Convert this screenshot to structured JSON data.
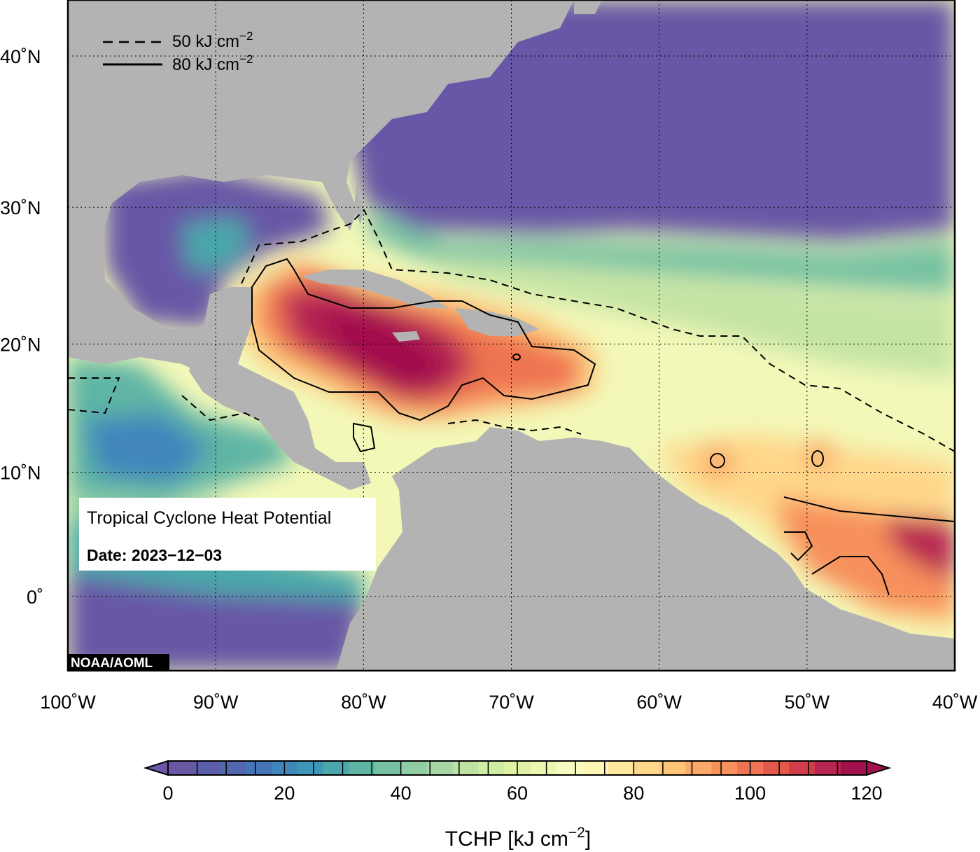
{
  "map": {
    "title": "Tropical Cyclone Heat Potential",
    "date_label": "Date: 2023−12−03",
    "credit": "NOAA/AOML",
    "lon_ticks": [
      "100˚W",
      "90˚W",
      "80˚W",
      "70˚W",
      "60˚W",
      "50˚W",
      "40˚W"
    ],
    "lat_ticks": [
      "40˚N",
      "30˚N",
      "20˚N",
      "10˚N",
      "0˚"
    ],
    "extent": {
      "lon": [
        -100,
        -40
      ],
      "lat": [
        -5,
        44
      ]
    },
    "grid": "dotted",
    "legend_placement": "top-left",
    "contour_legend": [
      {
        "style": "dashed",
        "value": "50 kJ cm",
        "unit_exp": "−2"
      },
      {
        "style": "solid",
        "value": "80 kJ cm",
        "unit_exp": "−2"
      }
    ],
    "colors": {
      "land": "#b3b3b3",
      "cold_ocean": "#6756a6",
      "hot_ocean": "#a3114d"
    }
  },
  "colorbar": {
    "label": "TCHP [kJ cm",
    "label_exp": "−2",
    "label_close": "]",
    "ticks": [
      "0",
      "20",
      "40",
      "60",
      "80",
      "100",
      "120"
    ],
    "range": [
      0,
      120
    ],
    "step": 5,
    "colors": [
      "#6b57a6",
      "#5d5ea9",
      "#5167ae",
      "#4575b4",
      "#3f86bc",
      "#3f97b7",
      "#4aa8ab",
      "#5fb5a4",
      "#76c1a2",
      "#8fcda4",
      "#a7d8a3",
      "#bde2a3",
      "#d1eca3",
      "#e2f2a5",
      "#eef7b0",
      "#f7fbc0",
      "#fdf6b6",
      "#fee8a0",
      "#fed78a",
      "#fdc377",
      "#fbab67",
      "#f7905b",
      "#ef7451",
      "#e2594b",
      "#cf3e4a",
      "#b72652",
      "#a3114d"
    ]
  }
}
